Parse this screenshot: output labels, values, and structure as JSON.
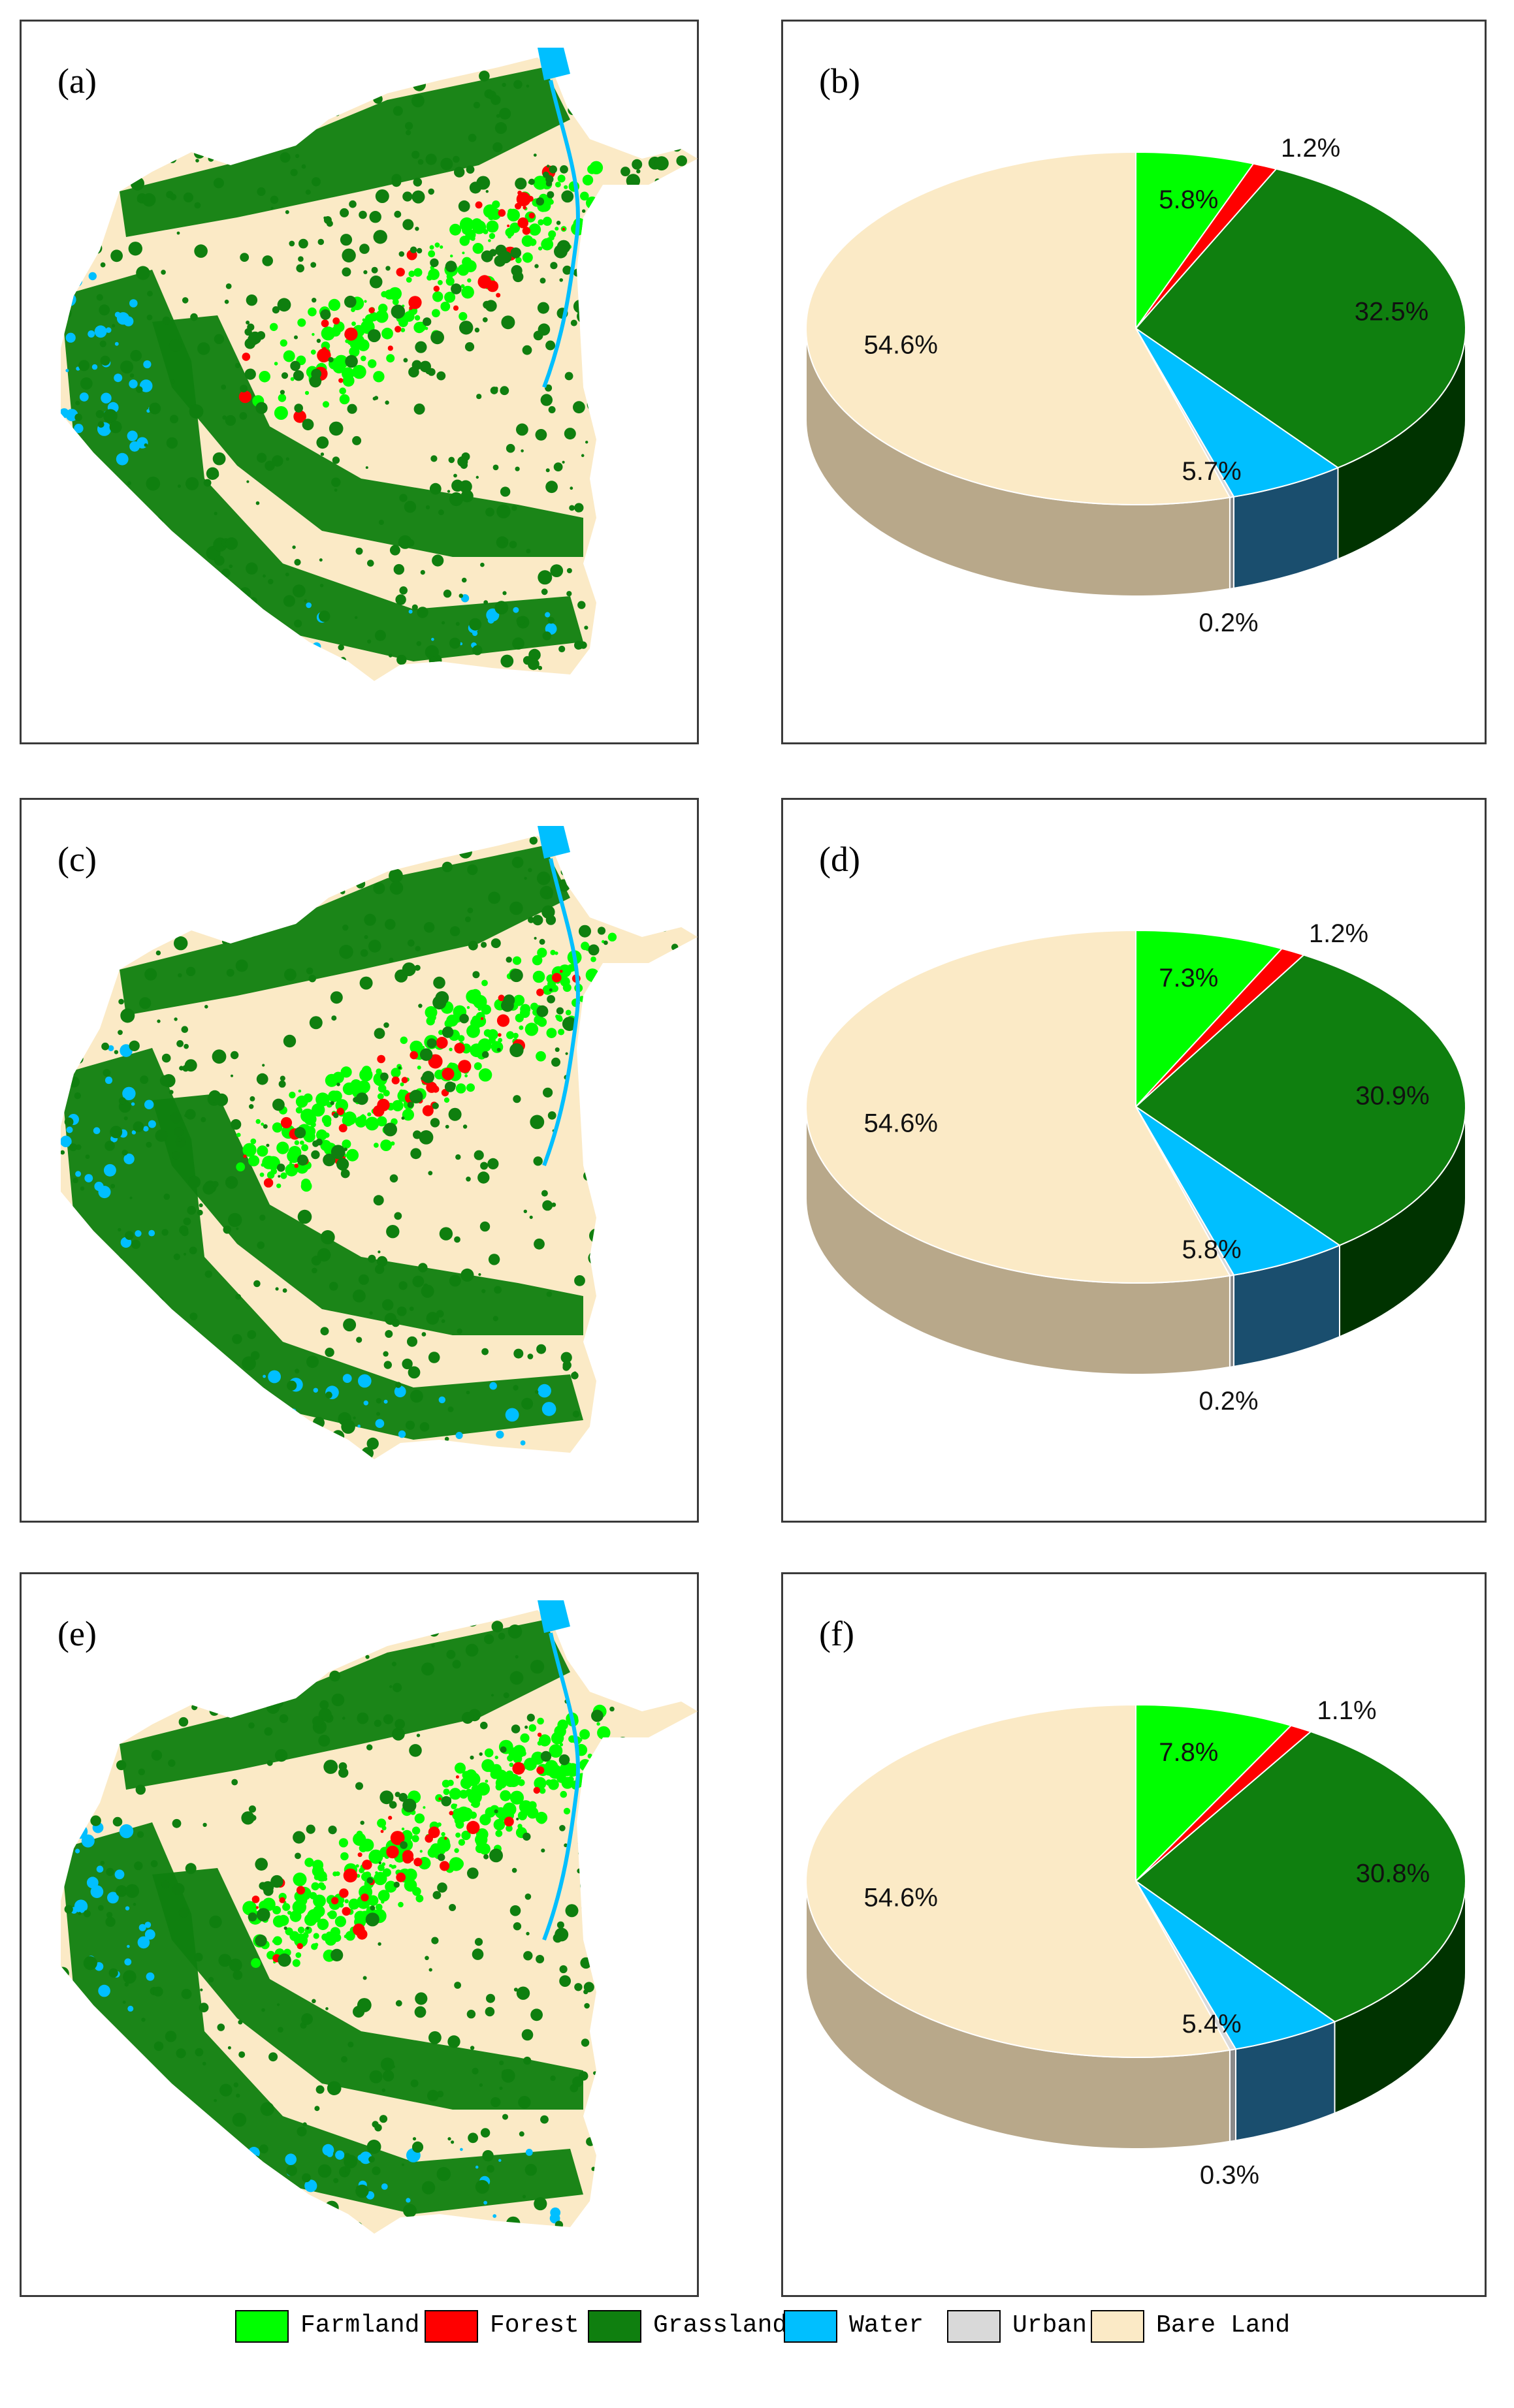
{
  "colors": {
    "Farmland": "#00ff00",
    "Forest": "#ff0000",
    "Grassland": "#0f7f0f",
    "Water": "#00bfff",
    "Urban": "#d9d9d9",
    "Bare Land": "#fbeac6"
  },
  "side_colors": {
    "Farmland": "#0a6a0a",
    "Forest": "#8a0000",
    "Grassland": "#003300",
    "Water": "#1a4e6e",
    "Urban": "#8a8a8a",
    "Bare Land": "#b8a88a"
  },
  "map_panels": [
    {
      "label": "(a)"
    },
    {
      "label": "(c)"
    },
    {
      "label": "(e)"
    }
  ],
  "chart_data": [
    {
      "type": "pie",
      "panel_label": "(b)",
      "style": "3d",
      "categories": [
        "Farmland",
        "Forest",
        "Grassland",
        "Water",
        "Urban",
        "Bare Land"
      ],
      "values": [
        5.8,
        1.2,
        32.5,
        5.7,
        0.2,
        54.6
      ],
      "data_labels": [
        "5.8%",
        "1.2%",
        "32.5%",
        "5.7%",
        "0.2%",
        "54.6%"
      ]
    },
    {
      "type": "pie",
      "panel_label": "(d)",
      "style": "3d",
      "categories": [
        "Farmland",
        "Forest",
        "Grassland",
        "Water",
        "Urban",
        "Bare Land"
      ],
      "values": [
        7.3,
        1.2,
        30.9,
        5.8,
        0.2,
        54.6
      ],
      "data_labels": [
        "7.3%",
        "1.2%",
        "30.9%",
        "5.8%",
        "0.2%",
        "54.6%"
      ]
    },
    {
      "type": "pie",
      "panel_label": "(f)",
      "style": "3d",
      "categories": [
        "Farmland",
        "Forest",
        "Grassland",
        "Water",
        "Urban",
        "Bare Land"
      ],
      "values": [
        7.8,
        1.1,
        30.8,
        5.4,
        0.3,
        54.6
      ],
      "data_labels": [
        "7.8%",
        "1.1%",
        "30.8%",
        "5.4%",
        "0.3%",
        "54.6%"
      ]
    }
  ],
  "legend": {
    "items": [
      "Farmland",
      "Forest",
      "Grassland",
      "Water",
      "Urban",
      "Bare Land"
    ]
  }
}
